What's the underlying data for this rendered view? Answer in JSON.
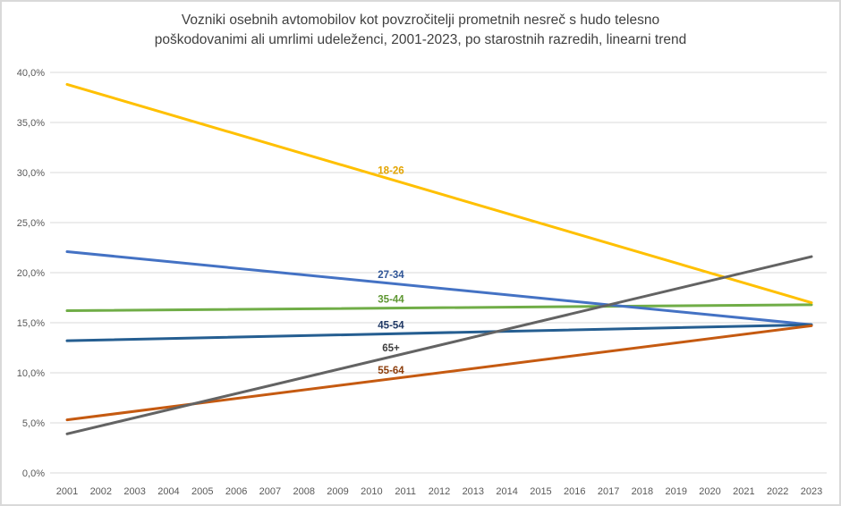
{
  "frame": {
    "background": "#ffffff",
    "border_color": "#d9d9d9"
  },
  "title": {
    "line1": "Vozniki osebnih avtomobilov kot povzročitelji prometnih nesreč s hudo telesno",
    "line2": "poškodovanimi ali umrlimi udeleženci, 2001-2023, po starostnih razredih, linearni trend",
    "color": "#404040"
  },
  "chart_data": {
    "type": "line",
    "subtype": "linear-trend",
    "x": [
      2001,
      2023
    ],
    "x_axis": {
      "tick_labels": [
        "2001",
        "2002",
        "2003",
        "2004",
        "2005",
        "2006",
        "2007",
        "2008",
        "2009",
        "2010",
        "2011",
        "2012",
        "2013",
        "2014",
        "2015",
        "2016",
        "2017",
        "2018",
        "2019",
        "2020",
        "2021",
        "2022",
        "2023"
      ],
      "min": 2001,
      "max": 2023
    },
    "y_axis": {
      "tick_labels": [
        "0,0%",
        "5,0%",
        "10,0%",
        "15,0%",
        "20,0%",
        "25,0%",
        "30,0%",
        "35,0%",
        "40,0%"
      ],
      "min": 0,
      "max": 40,
      "step": 5,
      "unit": "%"
    },
    "grid": true,
    "legend_position": "inline-labels",
    "series": [
      {
        "name": "18-26",
        "values": [
          38.8,
          17.0
        ],
        "color": "#FFC000",
        "label_color": "#E3A400"
      },
      {
        "name": "27-34",
        "values": [
          22.1,
          14.8
        ],
        "color": "#4472C4",
        "label_color": "#2F5597"
      },
      {
        "name": "35-44",
        "values": [
          16.2,
          16.8
        ],
        "color": "#70AD47",
        "label_color": "#5E9732"
      },
      {
        "name": "45-54",
        "values": [
          13.2,
          14.8
        ],
        "color": "#255E91",
        "label_color": "#1F3864"
      },
      {
        "name": "55-64",
        "values": [
          5.3,
          14.7
        ],
        "color": "#C55A11",
        "label_color": "#8C3D0B"
      },
      {
        "name": "65+",
        "values": [
          3.9,
          21.6
        ],
        "color": "#636363",
        "label_color": "#3F3F3F"
      }
    ]
  }
}
